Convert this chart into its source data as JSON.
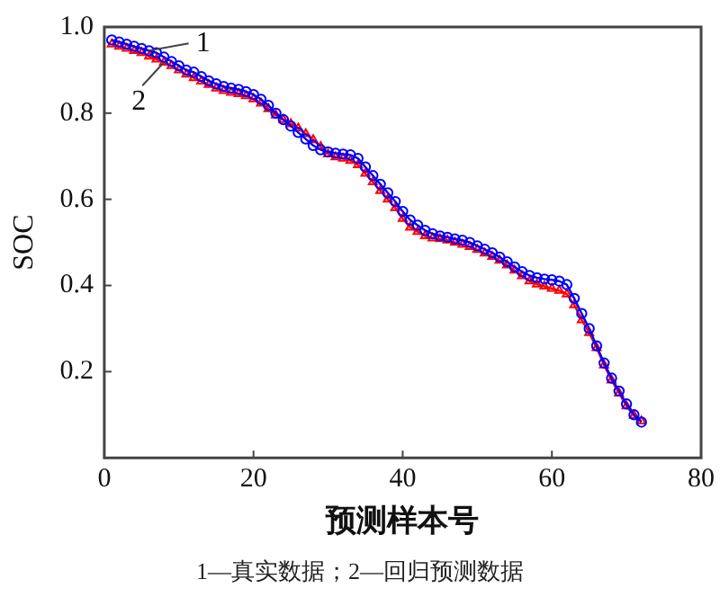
{
  "chart_data": {
    "type": "line",
    "xlabel": "预测样本号",
    "ylabel": "SOC",
    "x": [
      1,
      2,
      3,
      4,
      5,
      6,
      7,
      8,
      9,
      10,
      11,
      12,
      13,
      14,
      15,
      16,
      17,
      18,
      19,
      20,
      21,
      22,
      23,
      24,
      25,
      26,
      27,
      28,
      29,
      30,
      31,
      32,
      33,
      34,
      35,
      36,
      37,
      38,
      39,
      40,
      41,
      42,
      43,
      44,
      45,
      46,
      47,
      48,
      49,
      50,
      51,
      52,
      53,
      54,
      55,
      56,
      57,
      58,
      59,
      60,
      61,
      62,
      63,
      64,
      65,
      66,
      67,
      68,
      69,
      70,
      71,
      72
    ],
    "series": [
      {
        "color": "#0000ff",
        "marker": "circle",
        "values": [
          0.97,
          0.965,
          0.96,
          0.955,
          0.95,
          0.945,
          0.94,
          0.93,
          0.92,
          0.91,
          0.9,
          0.895,
          0.885,
          0.875,
          0.868,
          0.862,
          0.858,
          0.855,
          0.85,
          0.843,
          0.832,
          0.818,
          0.8,
          0.785,
          0.77,
          0.755,
          0.74,
          0.725,
          0.715,
          0.71,
          0.707,
          0.705,
          0.703,
          0.695,
          0.675,
          0.655,
          0.635,
          0.615,
          0.595,
          0.572,
          0.552,
          0.54,
          0.528,
          0.52,
          0.515,
          0.512,
          0.508,
          0.505,
          0.5,
          0.492,
          0.484,
          0.476,
          0.466,
          0.455,
          0.443,
          0.432,
          0.423,
          0.418,
          0.415,
          0.413,
          0.41,
          0.402,
          0.37,
          0.335,
          0.3,
          0.26,
          0.22,
          0.185,
          0.155,
          0.125,
          0.1,
          0.083
        ]
      },
      {
        "color": "#ff0000",
        "marker": "triangle",
        "values": [
          0.96,
          0.955,
          0.95,
          0.945,
          0.94,
          0.932,
          0.925,
          0.918,
          0.91,
          0.9,
          0.89,
          0.882,
          0.874,
          0.866,
          0.858,
          0.852,
          0.848,
          0.845,
          0.84,
          0.833,
          0.823,
          0.81,
          0.795,
          0.785,
          0.775,
          0.765,
          0.752,
          0.738,
          0.722,
          0.705,
          0.698,
          0.695,
          0.69,
          0.68,
          0.66,
          0.64,
          0.62,
          0.6,
          0.58,
          0.555,
          0.535,
          0.525,
          0.515,
          0.51,
          0.508,
          0.505,
          0.5,
          0.495,
          0.49,
          0.483,
          0.475,
          0.467,
          0.458,
          0.447,
          0.435,
          0.422,
          0.41,
          0.403,
          0.398,
          0.393,
          0.388,
          0.38,
          0.355,
          0.32,
          0.29,
          0.255,
          0.215,
          0.18,
          0.15,
          0.12,
          0.098,
          0.085
        ]
      }
    ],
    "xlim": [
      0,
      80
    ],
    "xticks": [
      0,
      20,
      40,
      60,
      80
    ],
    "ylim": [
      0,
      1
    ],
    "yticks": [
      {
        "value": 0.2,
        "label": "0.2"
      },
      {
        "value": 0.4,
        "label": "0.4"
      },
      {
        "value": 0.6,
        "label": "0.6"
      },
      {
        "value": 0.8,
        "label": "0.8"
      },
      {
        "value": 1,
        "label": "1.0"
      }
    ],
    "grid": false,
    "legend": false,
    "line_style": "solid",
    "annotations": [
      {
        "text": "1",
        "x": 6,
        "y": 0.945
      },
      {
        "text": "2",
        "x": 8,
        "y": 0.918
      },
      "1—真实数据；2—回归预测数据"
    ]
  }
}
